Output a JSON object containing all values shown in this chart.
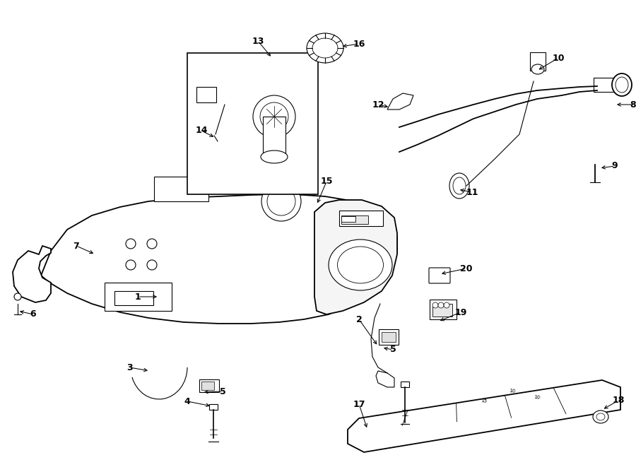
{
  "bg_color": "#ffffff",
  "line_color": "#000000",
  "fig_width": 9.0,
  "fig_height": 6.61,
  "dpi": 100,
  "label_fontsize": 9,
  "label_fontweight": "bold"
}
